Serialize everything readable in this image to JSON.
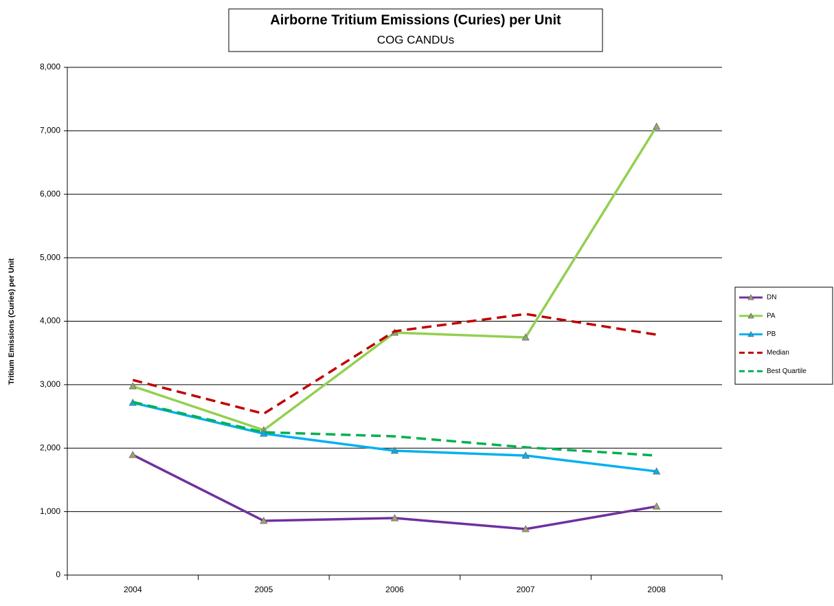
{
  "chart_data": {
    "type": "line",
    "title": "Airborne Tritium Emissions (Curies) per Unit",
    "subtitle": "COG CANDUs",
    "y_label": "Tritium Emissions (Curies) per Unit",
    "categories": [
      "2004",
      "2005",
      "2006",
      "2007",
      "2008"
    ],
    "series": [
      {
        "name": "DN",
        "color": "#7030a0",
        "marker": "triangle",
        "marker_color": "#a0a070",
        "dash": false,
        "values": [
          1894,
          855,
          898,
          725,
          1082
        ]
      },
      {
        "name": "PA",
        "color": "#92d050",
        "marker": "triangle",
        "marker_color": "#8faa6a",
        "dash": false,
        "values": [
          2976,
          2284,
          3820,
          3745,
          7067
        ]
      },
      {
        "name": "PB",
        "color": "#00b0f0",
        "marker": "triangle",
        "marker_color": "#00b0f0",
        "dash": false,
        "values": [
          2716,
          2229,
          1959,
          1883,
          1634
        ]
      },
      {
        "name": "Median",
        "color": "#c00000",
        "marker": "none",
        "dash": true,
        "values": [
          3074,
          2543,
          3842,
          4113,
          3788
        ]
      },
      {
        "name": "Best Quartile",
        "color": "#00b050",
        "marker": "none",
        "dash": true,
        "values": [
          2727,
          2251,
          2186,
          2013,
          1883
        ]
      }
    ],
    "ylim": [
      0,
      8000
    ],
    "yticks": [
      0,
      {
        "value": 1000,
        "label": "1,000"
      },
      {
        "value": 2000,
        "label": "2,000"
      },
      {
        "value": 3000,
        "label": "3,000"
      },
      {
        "value": 4000,
        "label": "4,000"
      },
      {
        "value": 5000,
        "label": "5,000"
      },
      {
        "value": 6000,
        "label": "6,000"
      },
      {
        "value": 7000,
        "label": "7,000"
      },
      {
        "value": 8000,
        "label": "8,000"
      }
    ],
    "grid": true,
    "legend": "right"
  }
}
